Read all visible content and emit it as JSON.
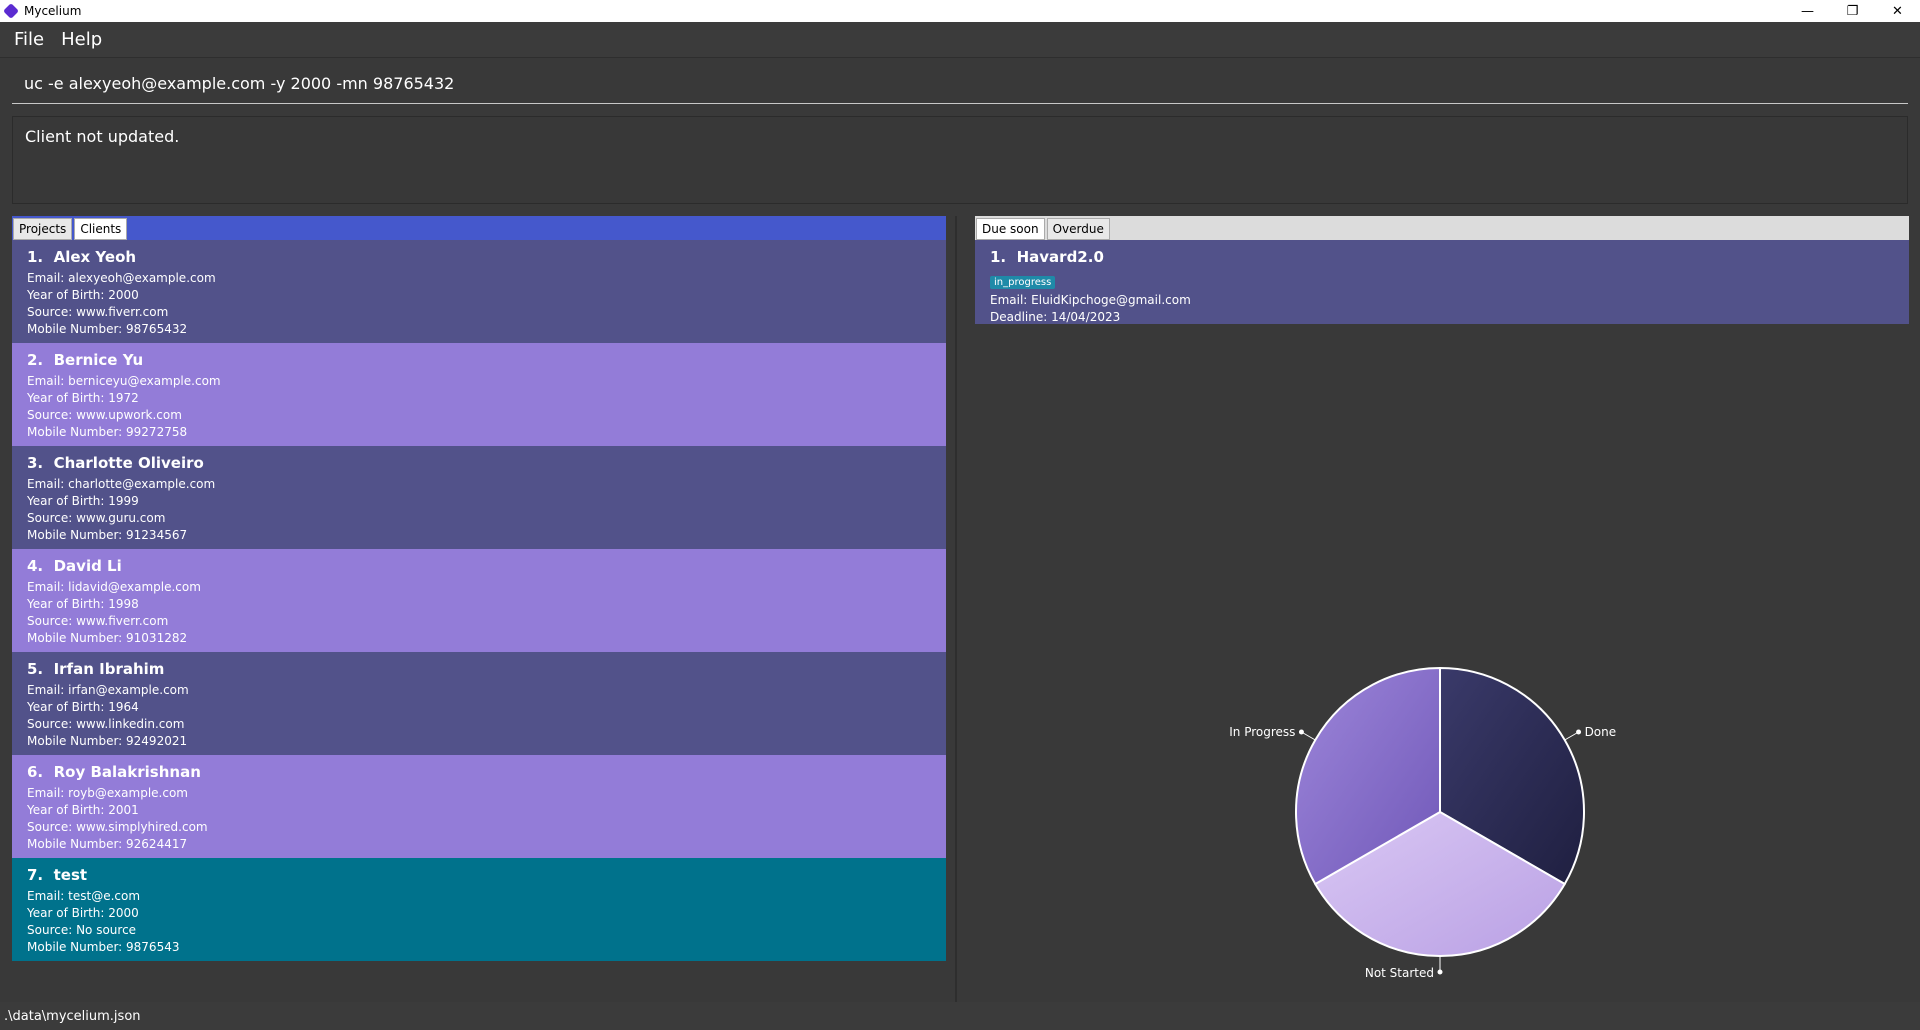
{
  "window": {
    "title": "Mycelium"
  },
  "menu": {
    "file": "File",
    "help": "Help"
  },
  "command": {
    "value": "uc -e alexyeoh@example.com -y 2000 -mn 98765432"
  },
  "result": {
    "text": "Client not updated."
  },
  "left_tabs": [
    {
      "label": "Projects"
    },
    {
      "label": "Clients"
    }
  ],
  "clients": [
    {
      "index": "1.",
      "name": "Alex Yeoh",
      "email": "Email: alexyeoh@example.com",
      "yob": "Year of Birth: 2000",
      "source": "Source: www.fiverr.com",
      "mobile": "Mobile Number: 98765432"
    },
    {
      "index": "2.",
      "name": "Bernice Yu",
      "email": "Email: berniceyu@example.com",
      "yob": "Year of Birth: 1972",
      "source": "Source: www.upwork.com",
      "mobile": "Mobile Number: 99272758"
    },
    {
      "index": "3.",
      "name": "Charlotte Oliveiro",
      "email": "Email: charlotte@example.com",
      "yob": "Year of Birth: 1999",
      "source": "Source: www.guru.com",
      "mobile": "Mobile Number: 91234567"
    },
    {
      "index": "4.",
      "name": "David Li",
      "email": "Email: lidavid@example.com",
      "yob": "Year of Birth: 1998",
      "source": "Source: www.fiverr.com",
      "mobile": "Mobile Number: 91031282"
    },
    {
      "index": "5.",
      "name": "Irfan Ibrahim",
      "email": "Email: irfan@example.com",
      "yob": "Year of Birth: 1964",
      "source": "Source: www.linkedin.com",
      "mobile": "Mobile Number: 92492021"
    },
    {
      "index": "6.",
      "name": "Roy Balakrishnan",
      "email": "Email: royb@example.com",
      "yob": "Year of Birth: 2001",
      "source": "Source: www.simplyhired.com",
      "mobile": "Mobile Number: 92624417"
    },
    {
      "index": "7.",
      "name": "test",
      "email": "Email: test@e.com",
      "yob": "Year of Birth: 2000",
      "source": "Source: No source",
      "mobile": "Mobile Number: 9876543"
    }
  ],
  "right_tabs": [
    {
      "label": "Due soon"
    },
    {
      "label": "Overdue"
    }
  ],
  "projects": [
    {
      "index": "1.",
      "name": "Havard2.0",
      "status": "in_progress",
      "email": "Email: EluidKipchoge@gmail.com",
      "deadline": "Deadline: 14/04/2023"
    }
  ],
  "chart_data": {
    "type": "pie",
    "labels": [
      "Done",
      "Not Started",
      "In Progress"
    ],
    "values": [
      1,
      1,
      1
    ],
    "colors": [
      "#2a2a52",
      "#cbb6ec",
      "#8a72cc"
    ]
  },
  "status": {
    "path": ".\\data\\mycelium.json"
  }
}
